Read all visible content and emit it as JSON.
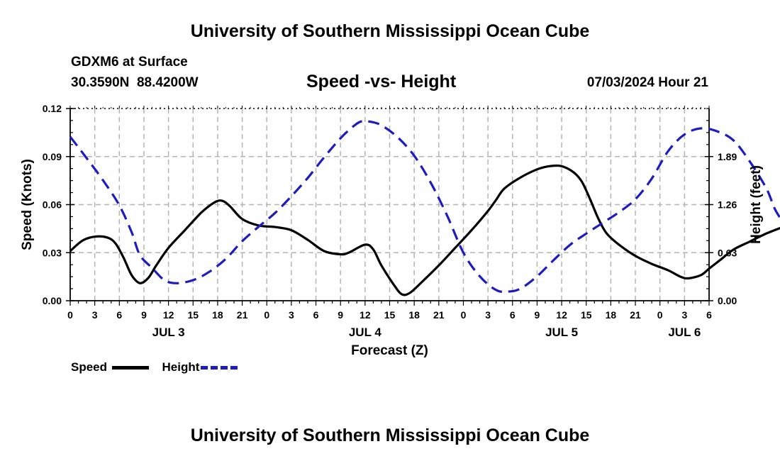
{
  "page": {
    "title_top": "University of Southern Mississippi Ocean Cube",
    "title_bottom": "University of Southern Mississippi Ocean Cube",
    "station": "GDXM6 at Surface",
    "coords": "30.3590N  88.4200W",
    "chart_title": "Speed -vs- Height",
    "timestamp": "07/03/2024 Hour 21"
  },
  "chart_data": {
    "type": "line",
    "title": "Speed -vs- Height",
    "xlabel": "Forecast (Z)",
    "ylabel": "Speed (Knots)",
    "y2label": "Height (feet)",
    "ylim": [
      0,
      0.12
    ],
    "y2lim": [
      0,
      2.52
    ],
    "x_hours_range": [
      0,
      78
    ],
    "x_tick_labels": [
      "0",
      "3",
      "6",
      "9",
      "12",
      "15",
      "18",
      "21",
      "0",
      "3",
      "6",
      "9",
      "12",
      "15",
      "18",
      "21",
      "0",
      "3",
      "6",
      "9",
      "12",
      "15",
      "18",
      "21",
      "0",
      "3",
      "6"
    ],
    "date_labels": [
      {
        "label": "JUL 3",
        "hour": 12
      },
      {
        "label": "JUL 4",
        "hour": 36
      },
      {
        "label": "JUL 5",
        "hour": 60
      },
      {
        "label": "JUL 6",
        "hour": 75
      }
    ],
    "y_ticks": [
      "0.00",
      "0.03",
      "0.06",
      "0.09",
      "0.12"
    ],
    "y2_ticks": [
      "0.00",
      "0.63",
      "1.26",
      "1.89"
    ],
    "grid": true,
    "series": [
      {
        "name": "Speed",
        "axis": "left",
        "color": "#000000",
        "style": "solid",
        "points": [
          [
            0,
            0.031
          ],
          [
            1.5,
            0.0375
          ],
          [
            3,
            0.04
          ],
          [
            4.5,
            0.0395
          ],
          [
            5.5,
            0.036
          ],
          [
            6.5,
            0.027
          ],
          [
            7.5,
            0.016
          ],
          [
            8.5,
            0.011
          ],
          [
            9.5,
            0.014
          ],
          [
            10.5,
            0.022
          ],
          [
            12,
            0.033
          ],
          [
            14,
            0.044
          ],
          [
            16,
            0.055
          ],
          [
            17.5,
            0.061
          ],
          [
            18.5,
            0.0625
          ],
          [
            19.5,
            0.059
          ],
          [
            21,
            0.051
          ],
          [
            23,
            0.047
          ],
          [
            25,
            0.046
          ],
          [
            27,
            0.044
          ],
          [
            29,
            0.038
          ],
          [
            31,
            0.031
          ],
          [
            33,
            0.029
          ],
          [
            34,
            0.03
          ],
          [
            36,
            0.035
          ],
          [
            37,
            0.032
          ],
          [
            38,
            0.022
          ],
          [
            39.5,
            0.01
          ],
          [
            40.5,
            0.004
          ],
          [
            41.5,
            0.005
          ],
          [
            43,
            0.012
          ],
          [
            45,
            0.022
          ],
          [
            47,
            0.033
          ],
          [
            49,
            0.044
          ],
          [
            51,
            0.056
          ],
          [
            52,
            0.063
          ],
          [
            53,
            0.07
          ],
          [
            55,
            0.077
          ],
          [
            57,
            0.082
          ],
          [
            58.5,
            0.084
          ],
          [
            60,
            0.084
          ],
          [
            61.5,
            0.08
          ],
          [
            62.5,
            0.074
          ],
          [
            63.5,
            0.063
          ],
          [
            64.5,
            0.051
          ],
          [
            65.5,
            0.042
          ],
          [
            67,
            0.035
          ],
          [
            69,
            0.028
          ],
          [
            71,
            0.023
          ],
          [
            73,
            0.019
          ],
          [
            74.5,
            0.015
          ],
          [
            75.5,
            0.014
          ],
          [
            77,
            0.016
          ],
          [
            78,
            0.02
          ],
          [
            79.5,
            0.026
          ],
          [
            81,
            0.032
          ],
          [
            83,
            0.037
          ],
          [
            85,
            0.042
          ],
          [
            87,
            0.046
          ]
        ]
      },
      {
        "name": "Height",
        "axis": "right",
        "color": "#1c1cc4",
        "style": "dashed",
        "points": [
          [
            0,
            2.15
          ],
          [
            2,
            1.87
          ],
          [
            4,
            1.58
          ],
          [
            6,
            1.25
          ],
          [
            7.5,
            0.9
          ],
          [
            8.5,
            0.6
          ],
          [
            10,
            0.43
          ],
          [
            11.5,
            0.27
          ],
          [
            13,
            0.23
          ],
          [
            15,
            0.27
          ],
          [
            17,
            0.38
          ],
          [
            19,
            0.55
          ],
          [
            21,
            0.78
          ],
          [
            23,
            0.97
          ],
          [
            25,
            1.15
          ],
          [
            27,
            1.37
          ],
          [
            29,
            1.61
          ],
          [
            31,
            1.88
          ],
          [
            33,
            2.13
          ],
          [
            34.5,
            2.28
          ],
          [
            35.5,
            2.35
          ],
          [
            36.5,
            2.35
          ],
          [
            38,
            2.3
          ],
          [
            40,
            2.14
          ],
          [
            42,
            1.9
          ],
          [
            44,
            1.55
          ],
          [
            46,
            1.12
          ],
          [
            48,
            0.63
          ],
          [
            50,
            0.32
          ],
          [
            52,
            0.14
          ],
          [
            53.5,
            0.12
          ],
          [
            55,
            0.16
          ],
          [
            57,
            0.32
          ],
          [
            59,
            0.53
          ],
          [
            61,
            0.73
          ],
          [
            63,
            0.88
          ],
          [
            65,
            1.02
          ],
          [
            67,
            1.16
          ],
          [
            69,
            1.33
          ],
          [
            71,
            1.6
          ],
          [
            73,
            1.96
          ],
          [
            75,
            2.18
          ],
          [
            77,
            2.26
          ],
          [
            79,
            2.22
          ],
          [
            81,
            2.1
          ],
          [
            83,
            1.82
          ],
          [
            85,
            1.47
          ],
          [
            86,
            1.21
          ],
          [
            87,
            1.03
          ]
        ]
      }
    ]
  },
  "legend": [
    {
      "label": "Speed",
      "color": "#000000",
      "style": "solid"
    },
    {
      "label": "Height",
      "color": "#1c1cc4",
      "style": "dashed"
    }
  ]
}
